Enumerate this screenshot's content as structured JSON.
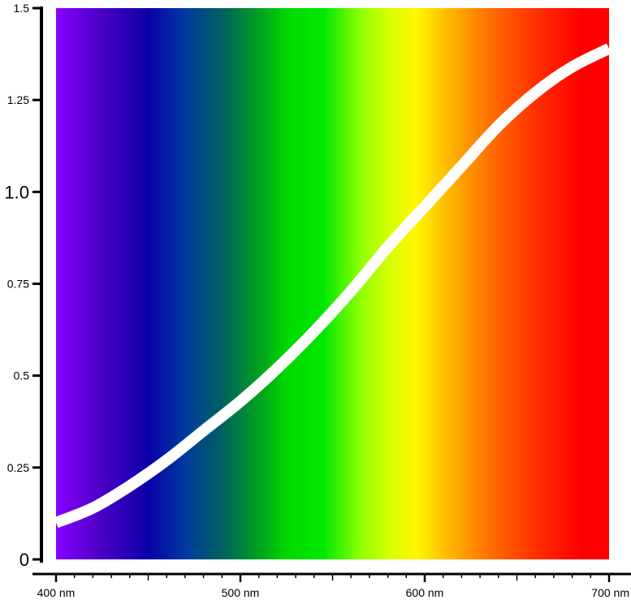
{
  "chart_data": {
    "type": "line",
    "title": "",
    "xlabel": "",
    "ylabel": "",
    "xlim": [
      400,
      700
    ],
    "ylim": [
      0,
      1.5
    ],
    "x_ticks": [
      {
        "value": 400,
        "label": "400 nm"
      },
      {
        "value": 500,
        "label": "500 nm"
      },
      {
        "value": 600,
        "label": "600 nm"
      },
      {
        "value": 700,
        "label": "700 nm"
      }
    ],
    "y_ticks": [
      {
        "value": 0,
        "label": "0"
      },
      {
        "value": 0.25,
        "label": "0.25"
      },
      {
        "value": 0.5,
        "label": "0.5"
      },
      {
        "value": 0.75,
        "label": "0.75"
      },
      {
        "value": 1.0,
        "label": "1.0"
      },
      {
        "value": 1.25,
        "label": "1.25"
      },
      {
        "value": 1.5,
        "label": "1.5"
      }
    ],
    "grid": false,
    "legend": "none",
    "background": "visible spectrum gradient (violet to red)",
    "series": [
      {
        "color": "#ffffff",
        "x": [
          400,
          420,
          440,
          460,
          480,
          500,
          520,
          540,
          560,
          580,
          600,
          620,
          640,
          660,
          680,
          700
        ],
        "y": [
          0.1,
          0.14,
          0.2,
          0.27,
          0.35,
          0.43,
          0.52,
          0.62,
          0.73,
          0.85,
          0.96,
          1.07,
          1.18,
          1.27,
          1.34,
          1.39
        ]
      }
    ],
    "spectrum_stops": [
      {
        "nm": 400,
        "color": "#8800ff"
      },
      {
        "nm": 425,
        "color": "#4a00c4"
      },
      {
        "nm": 450,
        "color": "#0a00a8"
      },
      {
        "nm": 470,
        "color": "#003aa0"
      },
      {
        "nm": 490,
        "color": "#006060"
      },
      {
        "nm": 510,
        "color": "#00a020"
      },
      {
        "nm": 525,
        "color": "#00d800"
      },
      {
        "nm": 545,
        "color": "#00e800"
      },
      {
        "nm": 565,
        "color": "#8eff00"
      },
      {
        "nm": 580,
        "color": "#d4ff00"
      },
      {
        "nm": 595,
        "color": "#fff800"
      },
      {
        "nm": 612,
        "color": "#ffbb00"
      },
      {
        "nm": 635,
        "color": "#ff7000"
      },
      {
        "nm": 660,
        "color": "#ff3000"
      },
      {
        "nm": 685,
        "color": "#ff0000"
      },
      {
        "nm": 700,
        "color": "#ff0000"
      }
    ],
    "axis_color": "#000000"
  }
}
